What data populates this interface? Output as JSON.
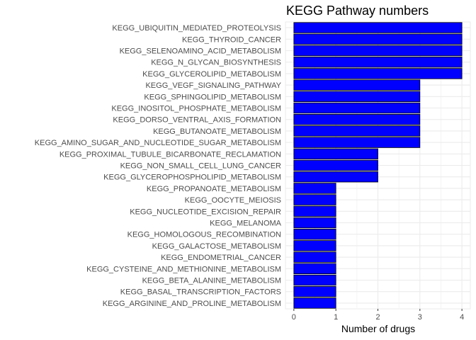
{
  "chart_data": {
    "type": "bar",
    "orientation": "horizontal",
    "title": "KEGG Pathway numbers",
    "xlabel": "Number of drugs",
    "ylabel": "",
    "xlim": [
      0,
      4
    ],
    "xticks": [
      "0",
      "1",
      "2",
      "3",
      "4"
    ],
    "grid": true,
    "legend": "none",
    "bar_color": "#0000ff",
    "bar_edge_color": "#000000",
    "categories": [
      "KEGG_UBIQUITIN_MEDIATED_PROTEOLYSIS",
      "KEGG_THYROID_CANCER",
      "KEGG_SELENOAMINO_ACID_METABOLISM",
      "KEGG_N_GLYCAN_BIOSYNTHESIS",
      "KEGG_GLYCEROLIPID_METABOLISM",
      "KEGG_VEGF_SIGNALING_PATHWAY",
      "KEGG_SPHINGOLIPID_METABOLISM",
      "KEGG_INOSITOL_PHOSPHATE_METABOLISM",
      "KEGG_DORSO_VENTRAL_AXIS_FORMATION",
      "KEGG_BUTANOATE_METABOLISM",
      "KEGG_AMINO_SUGAR_AND_NUCLEOTIDE_SUGAR_METABOLISM",
      "KEGG_PROXIMAL_TUBULE_BICARBONATE_RECLAMATION",
      "KEGG_NON_SMALL_CELL_LUNG_CANCER",
      "KEGG_GLYCEROPHOSPHOLIPID_METABOLISM",
      "KEGG_PROPANOATE_METABOLISM",
      "KEGG_OOCYTE_MEIOSIS",
      "KEGG_NUCLEOTIDE_EXCISION_REPAIR",
      "KEGG_MELANOMA",
      "KEGG_HOMOLOGOUS_RECOMBINATION",
      "KEGG_GALACTOSE_METABOLISM",
      "KEGG_ENDOMETRIAL_CANCER",
      "KEGG_CYSTEINE_AND_METHIONINE_METABOLISM",
      "KEGG_BETA_ALANINE_METABOLISM",
      "KEGG_BASAL_TRANSCRIPTION_FACTORS",
      "KEGG_ARGININE_AND_PROLINE_METABOLISM"
    ],
    "values": [
      4,
      4,
      4,
      4,
      4,
      3,
      3,
      3,
      3,
      3,
      3,
      2,
      2,
      2,
      1,
      1,
      1,
      1,
      1,
      1,
      1,
      1,
      1,
      1,
      1
    ]
  }
}
